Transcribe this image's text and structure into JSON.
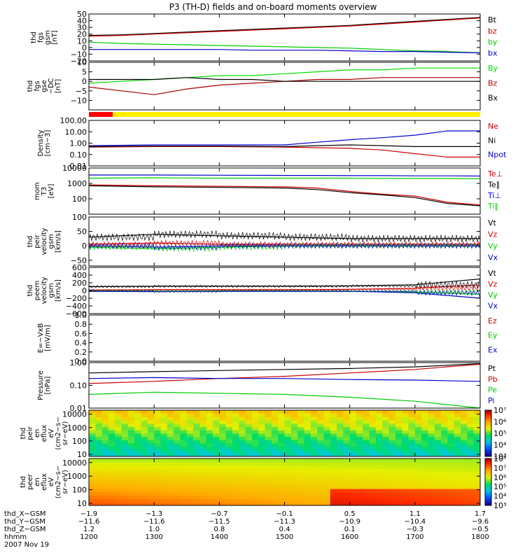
{
  "title": "P3 (TH-D) fields and on-board moments overview",
  "chart_data": [
    {
      "id": "fgs",
      "type": "line",
      "ylabel_lines": [
        "thd",
        "fgs",
        "gsm",
        "[nT]"
      ],
      "ylim": [
        -20,
        50
      ],
      "yticks": [
        "50",
        "40",
        "30",
        "20",
        "10",
        "0",
        "−10",
        "−20"
      ],
      "ytick_values": [
        50,
        40,
        30,
        20,
        10,
        0,
        -10,
        -20
      ],
      "series": [
        {
          "name": "Bt",
          "color": "#000000",
          "x": [
            12,
            12.5,
            13,
            13.5,
            14,
            14.5,
            15,
            15.5,
            16,
            16.5,
            17,
            17.5,
            18
          ],
          "values": [
            18,
            19,
            21,
            23,
            25,
            27,
            29,
            31,
            33,
            36,
            39,
            42,
            45
          ]
        },
        {
          "name": "bz",
          "color": "#cc0000",
          "x": [
            12,
            12.5,
            13,
            13.5,
            14,
            14.5,
            15,
            15.5,
            16,
            16.5,
            17,
            17.5,
            18
          ],
          "values": [
            17,
            18,
            20,
            22,
            24,
            26,
            28,
            30,
            32,
            35,
            38,
            41,
            44
          ]
        },
        {
          "name": "by",
          "color": "#00cc00",
          "x": [
            12,
            12.5,
            13,
            13.5,
            14,
            14.5,
            15,
            15.5,
            16,
            16.5,
            17,
            17.5,
            18
          ],
          "values": [
            8,
            6,
            5,
            4,
            3,
            2,
            1,
            0,
            -1,
            -3,
            -5,
            -6,
            -8
          ]
        },
        {
          "name": "bx",
          "color": "#0000cc",
          "x": [
            12,
            12.5,
            13,
            13.5,
            14,
            14.5,
            15,
            15.5,
            16,
            16.5,
            17,
            17.5,
            18
          ],
          "values": [
            -3,
            -3,
            -3,
            -3,
            -3,
            -4,
            -4,
            -4,
            -5,
            -6,
            -6,
            -7,
            -8
          ]
        }
      ]
    },
    {
      "id": "fgs_dsl",
      "type": "line",
      "ylabel_lines": [
        "thd",
        "fgs",
        "gse",
        "−DC",
        "[nT]"
      ],
      "ylim": [
        -15,
        10
      ],
      "yticks": [
        "10",
        "5",
        "0",
        "−5",
        "−10"
      ],
      "ytick_values": [
        10,
        5,
        0,
        -5,
        -10
      ],
      "series": [
        {
          "name": "By",
          "color": "#00dd00",
          "x": [
            12,
            12.5,
            13,
            13.5,
            14,
            14.5,
            15,
            15.5,
            16,
            16.5,
            17,
            17.5,
            18
          ],
          "values": [
            -1,
            0,
            1,
            2,
            3,
            3,
            4,
            5,
            6,
            6,
            7,
            7,
            7
          ]
        },
        {
          "name": "Bz",
          "color": "#aa0000",
          "x": [
            12,
            12.5,
            13,
            13.5,
            14,
            14.5,
            15,
            15.5,
            16,
            16.5,
            17,
            17.5,
            18
          ],
          "values": [
            -3,
            -5,
            -7,
            -4,
            -2,
            -1,
            0,
            1,
            1,
            2,
            2,
            2,
            2
          ]
        },
        {
          "name": "Bx",
          "color": "#000000",
          "x": [
            12,
            12.5,
            13,
            13.5,
            14,
            14.5,
            15,
            15.5,
            16,
            16.5,
            17,
            17.5,
            18
          ],
          "values": [
            1,
            1,
            1,
            2,
            1,
            1,
            0,
            0,
            0,
            0,
            0,
            0,
            0
          ]
        }
      ]
    },
    {
      "id": "density",
      "type": "line",
      "log": true,
      "ylabel_lines": [
        "Density",
        "[cm−3]"
      ],
      "ylim": [
        0.01,
        100
      ],
      "yticks": [
        "100.00",
        "10.00",
        "1.00",
        "0.10",
        "0.01"
      ],
      "ytick_values": [
        100,
        10,
        1,
        0.1,
        0.01
      ],
      "series": [
        {
          "name": "Ne",
          "color": "#cc0000",
          "x": [
            12,
            13,
            14,
            15,
            15.5,
            16,
            16.5,
            17,
            17.5,
            18
          ],
          "values": [
            0.45,
            0.5,
            0.5,
            0.45,
            0.4,
            0.35,
            0.25,
            0.12,
            0.06,
            0.06
          ]
        },
        {
          "name": "Ni",
          "color": "#000000",
          "x": [
            12,
            13,
            14,
            15,
            15.5,
            16,
            16.5,
            17,
            17.5,
            18
          ],
          "values": [
            0.5,
            0.55,
            0.55,
            0.5,
            0.6,
            0.7,
            0.6,
            0.5,
            0.5,
            0.5
          ]
        },
        {
          "name": "Npot",
          "color": "#0000cc",
          "x": [
            12,
            13,
            14,
            15,
            15.5,
            16,
            16.5,
            17,
            17.5,
            18
          ],
          "values": [
            0.6,
            0.7,
            0.7,
            0.7,
            1.2,
            2.0,
            3.0,
            5.0,
            12,
            12
          ]
        }
      ]
    },
    {
      "id": "temperature",
      "type": "line",
      "log": true,
      "ylabel_lines": [
        "mom",
        "T3",
        "[eV]"
      ],
      "ylim": [
        10,
        10000
      ],
      "yticks": [
        "10000",
        "1000",
        "100"
      ],
      "ytick_values": [
        10000,
        1000,
        100
      ],
      "series": [
        {
          "name": "Te⊥",
          "color": "#cc0000",
          "x": [
            12,
            13,
            14,
            15,
            15.5,
            16,
            16.5,
            17,
            17.5,
            18
          ],
          "values": [
            800,
            700,
            650,
            600,
            500,
            300,
            200,
            150,
            60,
            40
          ]
        },
        {
          "name": "Te∥",
          "color": "#000000",
          "x": [
            12,
            13,
            14,
            15,
            15.5,
            16,
            16.5,
            17,
            17.5,
            18
          ],
          "values": [
            700,
            600,
            550,
            500,
            400,
            250,
            180,
            120,
            50,
            35
          ]
        },
        {
          "name": "Ti⊥",
          "color": "#0000cc",
          "x": [
            12,
            13,
            14,
            15,
            15.5,
            16,
            16.5,
            17,
            17.5,
            18
          ],
          "values": [
            3500,
            3500,
            3400,
            3300,
            3300,
            3200,
            3200,
            3100,
            3100,
            3000
          ]
        },
        {
          "name": "Ti∥",
          "color": "#00cc00",
          "x": [
            12,
            13,
            14,
            15,
            15.5,
            16,
            16.5,
            17,
            17.5,
            18
          ],
          "values": [
            2200,
            2300,
            2200,
            2200,
            2200,
            2200,
            2100,
            2100,
            2100,
            2000
          ]
        }
      ]
    },
    {
      "id": "vel_peir",
      "type": "line",
      "ylabel_lines": [
        "thd",
        "peir",
        "velocity",
        "gsm",
        "[km/s]"
      ],
      "ylim": [
        -70,
        100
      ],
      "yticks": [
        "100",
        "50",
        "0",
        "−50"
      ],
      "ytick_values": [
        100,
        50,
        0,
        -50
      ],
      "series": [
        {
          "name": "Vt",
          "color": "#000000",
          "x": [
            12,
            13,
            14,
            15,
            16,
            17,
            18
          ],
          "values": [
            30,
            40,
            35,
            30,
            25,
            25,
            25
          ]
        },
        {
          "name": "Vz",
          "color": "#cc0000",
          "x": [
            12,
            13,
            14,
            15,
            16,
            17,
            18
          ],
          "values": [
            5,
            10,
            5,
            5,
            5,
            5,
            5
          ]
        },
        {
          "name": "Vy",
          "color": "#00cc00",
          "x": [
            12,
            13,
            14,
            15,
            16,
            17,
            18
          ],
          "values": [
            -5,
            -10,
            -5,
            0,
            0,
            0,
            0
          ]
        },
        {
          "name": "Vx",
          "color": "#0000cc",
          "x": [
            12,
            13,
            14,
            15,
            16,
            17,
            18
          ],
          "values": [
            0,
            -5,
            0,
            0,
            0,
            0,
            0
          ]
        }
      ]
    },
    {
      "id": "vel_peem",
      "type": "line",
      "ylabel_lines": [
        "thd",
        "peem",
        "velocity",
        "gsm",
        "[km/s]"
      ],
      "ylim": [
        -600,
        600
      ],
      "yticks": [
        "600",
        "400",
        "200",
        "0",
        "−200",
        "−400",
        "−600"
      ],
      "ytick_values": [
        600,
        400,
        200,
        0,
        -200,
        -400,
        -600
      ],
      "series": [
        {
          "name": "Vt",
          "color": "#000000",
          "x": [
            12,
            13,
            14,
            15,
            16,
            17,
            18
          ],
          "values": [
            100,
            110,
            110,
            110,
            120,
            150,
            300
          ]
        },
        {
          "name": "Vz",
          "color": "#cc0000",
          "x": [
            12,
            13,
            14,
            15,
            16,
            17,
            18
          ],
          "values": [
            10,
            20,
            20,
            20,
            30,
            60,
            150
          ]
        },
        {
          "name": "Vy",
          "color": "#00cc00",
          "x": [
            12,
            13,
            14,
            15,
            16,
            17,
            18
          ],
          "values": [
            -10,
            -20,
            -10,
            -10,
            -20,
            -40,
            -100
          ]
        },
        {
          "name": "Vx",
          "color": "#0000cc",
          "x": [
            12,
            13,
            14,
            15,
            16,
            17,
            18
          ],
          "values": [
            -20,
            -30,
            -20,
            -20,
            -20,
            -60,
            -200
          ]
        }
      ]
    },
    {
      "id": "efield",
      "type": "line",
      "ylabel_lines": [
        "E=−VxB",
        "[mV/m]"
      ],
      "ylim": [
        0,
        1
      ],
      "yticks": [
        "1.0",
        "0.8",
        "0.6",
        "0.4",
        "0.2",
        "0.0"
      ],
      "ytick_values": [
        1,
        0.8,
        0.6,
        0.4,
        0.2,
        0
      ],
      "series": [
        {
          "name": "Ez",
          "color": "#cc0000",
          "x": [],
          "values": []
        },
        {
          "name": "Ey",
          "color": "#00cc00",
          "x": [],
          "values": []
        },
        {
          "name": "Ex",
          "color": "#0000cc",
          "x": [],
          "values": []
        }
      ]
    },
    {
      "id": "pressure",
      "type": "line",
      "log": true,
      "ylabel_lines": [
        "Pressure",
        "[nPa]"
      ],
      "ylim": [
        0.01,
        1.0
      ],
      "yticks": [
        "1.00",
        "0.10",
        "0.01"
      ],
      "ytick_values": [
        1,
        0.1,
        0.01
      ],
      "series": [
        {
          "name": "Pt",
          "color": "#000000",
          "x": [
            12,
            13,
            14,
            15,
            16,
            17,
            18
          ],
          "values": [
            0.35,
            0.4,
            0.45,
            0.5,
            0.55,
            0.65,
            0.9
          ]
        },
        {
          "name": "Pb",
          "color": "#cc0000",
          "x": [
            12,
            13,
            14,
            15,
            16,
            17,
            18
          ],
          "values": [
            0.12,
            0.15,
            0.2,
            0.25,
            0.35,
            0.5,
            0.85
          ]
        },
        {
          "name": "Pe",
          "color": "#00cc00",
          "x": [
            12,
            13,
            14,
            15,
            16,
            17,
            18
          ],
          "values": [
            0.04,
            0.05,
            0.045,
            0.04,
            0.03,
            0.02,
            0.01
          ]
        },
        {
          "name": "Pi",
          "color": "#0000cc",
          "x": [
            12,
            13,
            14,
            15,
            16,
            17,
            18
          ],
          "values": [
            0.2,
            0.22,
            0.2,
            0.2,
            0.18,
            0.17,
            0.15
          ]
        }
      ]
    },
    {
      "id": "peir_spec",
      "type": "heatmap",
      "ylabel_lines": [
        "thd",
        "peir",
        "en",
        "eflux",
        "eV",
        "(cm2−s−",
        "sr−eV)"
      ],
      "ylim": [
        7,
        20000
      ],
      "yticks": [
        "10000",
        "1000",
        "100",
        "10"
      ],
      "ytick_values": [
        10000,
        1000,
        100,
        10
      ],
      "colorbar_ticks": [
        "10⁷",
        "10⁶",
        "10⁵",
        "10⁴",
        "10³"
      ]
    },
    {
      "id": "peer_spec",
      "type": "heatmap",
      "ylabel_lines": [
        "thd",
        "peer",
        "en",
        "eflux",
        "eV",
        "(cm2−s−",
        "sr−eV)"
      ],
      "ylim": [
        7,
        20000
      ],
      "yticks": [
        "10000",
        "1000",
        "100",
        "10"
      ],
      "ytick_values": [
        10000,
        1000,
        100,
        10
      ],
      "colorbar_ticks": [
        "10⁸",
        "10⁷",
        "10⁶",
        "10⁵",
        "10⁴",
        "10³"
      ]
    }
  ],
  "xaxis": {
    "rows": [
      {
        "label": "thd_X−GSM",
        "values": [
          "−1.9",
          "−1.3",
          "−0.7",
          "−0.1",
          "0.5",
          "1.1",
          "1.7"
        ]
      },
      {
        "label": "thd_Y−GSM",
        "values": [
          "−11.6",
          "−11.6",
          "−11.5",
          "−11.3",
          "−10.9",
          "−10.4",
          "−9.6"
        ]
      },
      {
        "label": "thd_Z−GSM",
        "values": [
          "1.2",
          "1.0",
          "0.8",
          "0.4",
          "0.1",
          "−0.3",
          "−0.5"
        ]
      },
      {
        "label": "hhmm",
        "values": [
          "1200",
          "1300",
          "1400",
          "1500",
          "1600",
          "1700",
          "1800"
        ]
      }
    ],
    "date": "2007 Nov 19"
  }
}
